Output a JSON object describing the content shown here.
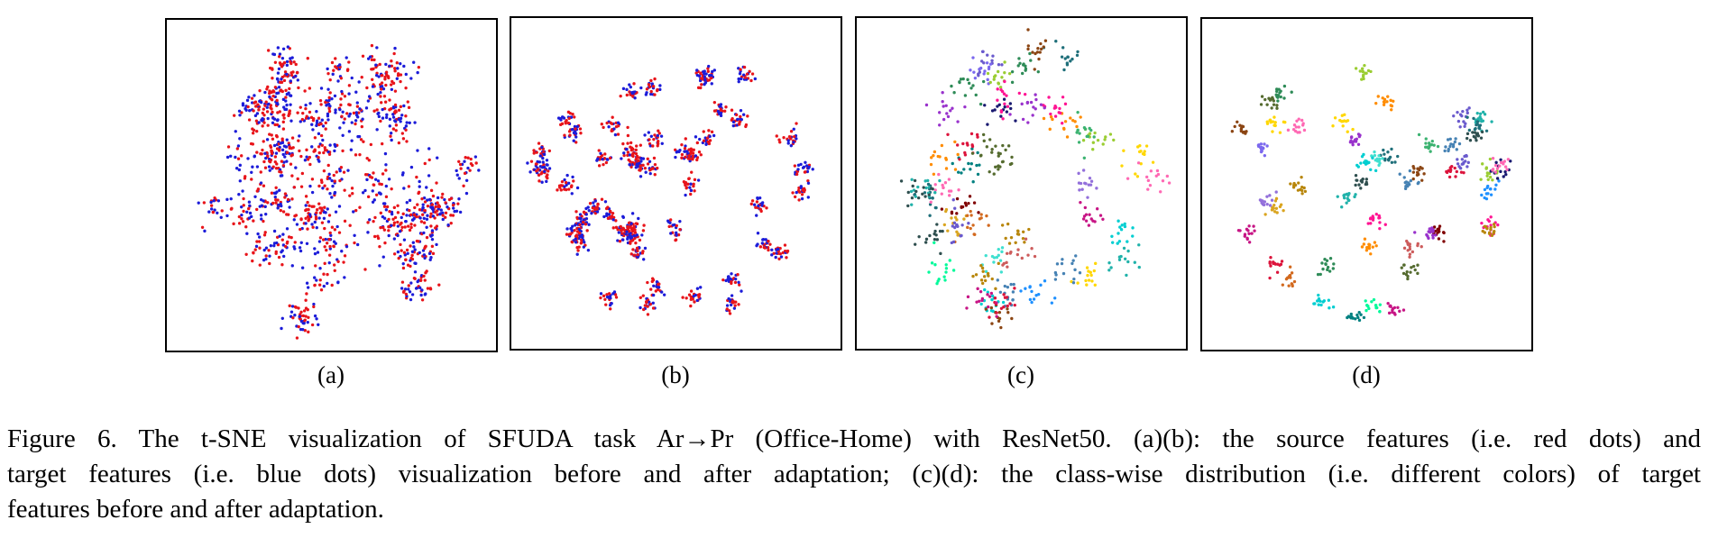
{
  "panels": [
    {
      "id": "a",
      "label": "(a)",
      "mode": "domain"
    },
    {
      "id": "b",
      "label": "(b)",
      "mode": "domain"
    },
    {
      "id": "c",
      "label": "(c)",
      "mode": "class"
    },
    {
      "id": "d",
      "label": "(d)",
      "mode": "class"
    }
  ],
  "colors": {
    "source": "#e8141a",
    "target": "#1c1cd9",
    "class_palette": [
      "#1f6f7a",
      "#2e8b57",
      "#c71585",
      "#ff69b4",
      "#00ced1",
      "#8b4513",
      "#ff8c00",
      "#9acd32",
      "#ffd700",
      "#4682b4",
      "#6a5acd",
      "#20b2aa",
      "#dc143c",
      "#556b2f",
      "#b8860b",
      "#9932cc",
      "#2f4f4f",
      "#ff1493",
      "#00fa9a",
      "#1e90ff",
      "#800000",
      "#008080",
      "#daa520",
      "#7b68ee",
      "#3cb371",
      "#cd5c5c",
      "#191970",
      "#40e0d0",
      "#d2691e",
      "#9370db"
    ]
  },
  "caption": {
    "line1": "Figure 6. The t-SNE visualization of SFUDA task Ar→Pr (Office-Home) with ResNet50. (a)(b): the source features (i.e. red dots) and",
    "line2": "target features (i.e. blue dots) visualization before and after adaptation; (c)(d): the class-wise distribution (i.e. different colors) of target",
    "line3": "features before and after adaptation."
  }
}
